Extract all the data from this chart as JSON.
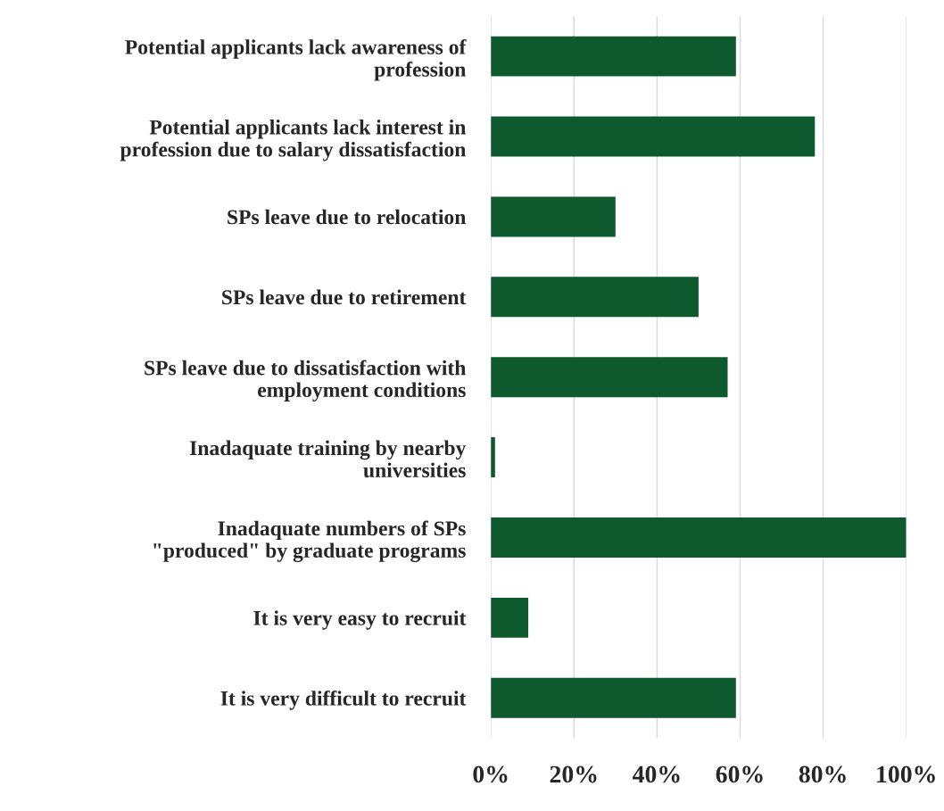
{
  "chart_data": {
    "type": "bar",
    "orientation": "horizontal",
    "categories": [
      "Potential applicants lack awareness of\nprofession",
      "Potential applicants lack interest in\nprofession due to salary dissatisfaction",
      "SPs leave due to relocation",
      "SPs leave due to retirement",
      "SPs leave due to dissatisfaction with\nemployment conditions",
      "Inadaquate training by nearby\nuniversities",
      "Inadaquate numbers of SPs\n\"produced\" by graduate programs",
      "It is very easy to recruit",
      "It is very difficult to recruit"
    ],
    "values": [
      59,
      78,
      30,
      50,
      57,
      1,
      100,
      9,
      59
    ],
    "color": "#0e5a2e",
    "xlim": [
      0,
      100
    ],
    "xticks": [
      {
        "value": 0,
        "label": "0%"
      },
      {
        "value": 20,
        "label": "20%"
      },
      {
        "value": 40,
        "label": "40%"
      },
      {
        "value": 60,
        "label": "60%"
      },
      {
        "value": 80,
        "label": "80%"
      },
      {
        "value": 100,
        "label": "100%"
      }
    ],
    "grid": "x"
  }
}
